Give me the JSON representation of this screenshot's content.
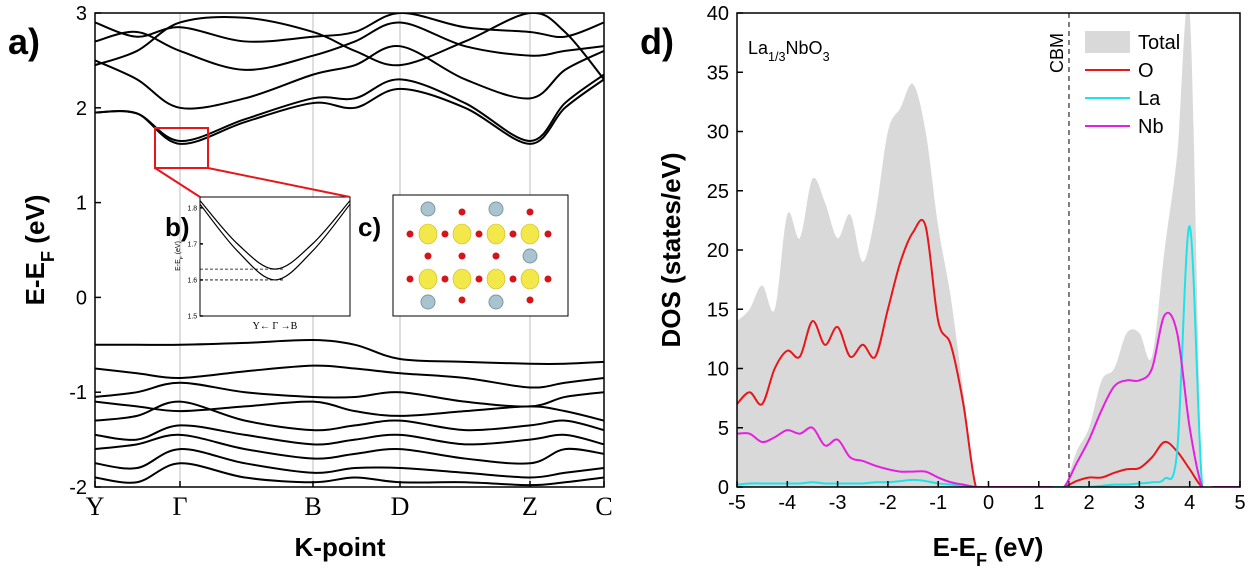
{
  "chart_data": [
    {
      "type": "line",
      "panel_label": "a)",
      "xlabel": "K-point",
      "ylabel_parts": [
        "E-E",
        "F",
        " (eV)"
      ],
      "color": "#000000",
      "x": [
        0,
        42,
        85,
        150,
        218,
        260,
        305,
        370,
        435,
        470,
        509
      ],
      "series": [
        {
          "values": [
            1.95,
            1.94,
            1.62,
            1.85,
            2.05,
            2.0,
            2.2,
            2.0,
            1.62,
            2.0,
            2.3
          ]
        },
        {
          "values": [
            1.95,
            1.94,
            1.65,
            1.88,
            2.1,
            2.1,
            2.3,
            2.05,
            1.65,
            2.05,
            2.35
          ]
        },
        {
          "values": [
            2.5,
            2.3,
            2.0,
            2.1,
            2.35,
            2.45,
            2.65,
            2.3,
            2.1,
            2.4,
            2.6
          ]
        },
        {
          "values": [
            2.7,
            2.8,
            2.6,
            2.4,
            2.55,
            2.7,
            2.9,
            2.65,
            2.55,
            2.6,
            2.65
          ]
        },
        {
          "values": [
            2.9,
            2.75,
            2.85,
            2.7,
            2.75,
            2.8,
            3.0,
            2.85,
            2.8,
            2.75,
            2.9
          ]
        },
        {
          "values": [
            2.45,
            2.6,
            2.9,
            2.95,
            2.8,
            2.6,
            2.45,
            2.7,
            3.0,
            2.8,
            2.3
          ]
        },
        {
          "values": [
            -0.5,
            -0.5,
            -0.5,
            -0.48,
            -0.45,
            -0.5,
            -0.65,
            -0.68,
            -0.7,
            -0.7,
            -0.68
          ]
        },
        {
          "values": [
            -0.75,
            -0.8,
            -0.85,
            -0.78,
            -0.72,
            -0.75,
            -0.8,
            -0.85,
            -0.95,
            -0.9,
            -0.85
          ]
        },
        {
          "values": [
            -1.05,
            -1.0,
            -0.9,
            -1.0,
            -1.05,
            -1.05,
            -1.0,
            -1.1,
            -1.15,
            -1.05,
            -1.0
          ]
        },
        {
          "values": [
            -1.1,
            -1.15,
            -1.2,
            -1.15,
            -1.1,
            -1.2,
            -1.25,
            -1.2,
            -1.15,
            -1.2,
            -1.3
          ]
        },
        {
          "values": [
            -1.3,
            -1.25,
            -1.1,
            -1.3,
            -1.4,
            -1.35,
            -1.3,
            -1.4,
            -1.35,
            -1.3,
            -1.4
          ]
        },
        {
          "values": [
            -1.45,
            -1.5,
            -1.35,
            -1.45,
            -1.55,
            -1.5,
            -1.45,
            -1.55,
            -1.5,
            -1.45,
            -1.55
          ]
        },
        {
          "values": [
            -1.6,
            -1.55,
            -1.45,
            -1.6,
            -1.7,
            -1.65,
            -1.6,
            -1.7,
            -1.75,
            -1.6,
            -1.65
          ]
        },
        {
          "values": [
            -1.75,
            -1.8,
            -1.6,
            -1.75,
            -1.85,
            -1.8,
            -1.8,
            -1.85,
            -1.9,
            -1.85,
            -1.8
          ]
        },
        {
          "values": [
            -1.9,
            -1.95,
            -1.75,
            -1.9,
            -1.95,
            -1.9,
            -1.95,
            -1.95,
            -1.98,
            -1.95,
            -1.9
          ]
        }
      ],
      "xlim": [
        0,
        509
      ],
      "ylim": [
        -2,
        3
      ],
      "xticks": [
        {
          "value": 0,
          "label": "Y"
        },
        {
          "value": 85,
          "label": "Γ"
        },
        {
          "value": 218,
          "label": "B"
        },
        {
          "value": 305,
          "label": "D"
        },
        {
          "value": 435,
          "label": "Z"
        },
        {
          "value": 509,
          "label": "C"
        }
      ],
      "yticks": [
        -2,
        -1,
        0,
        1,
        2,
        3
      ],
      "xgrid": true
    },
    {
      "type": "line",
      "panel_label": "b)",
      "xlabel": "Y← Γ →B",
      "ylabel_parts": [
        "E-E",
        "F",
        " (eV)"
      ],
      "color": "#000000",
      "x": [
        0,
        0.25,
        0.5,
        0.75,
        1
      ],
      "series": [
        {
          "values": [
            1.81,
            1.68,
            1.6,
            1.68,
            1.81
          ]
        },
        {
          "values": [
            1.82,
            1.7,
            1.63,
            1.7,
            1.82
          ]
        }
      ],
      "xlim": [
        0,
        1
      ],
      "ylim": [
        1.5,
        1.83
      ],
      "yticks": [
        1.5,
        1.6,
        1.7,
        1.8
      ],
      "reference_lines": [
        1.6,
        1.63
      ]
    },
    {
      "type": "image",
      "panel_label": "c)"
    },
    {
      "type": "line",
      "panel_label": "d)",
      "xlabel_parts": [
        "E-E",
        "F",
        " (eV)"
      ],
      "ylabel": "DOS (states/eV)",
      "formula_parts": [
        "La",
        "1/3",
        "NbO",
        "3"
      ],
      "annotation": {
        "text": "CBM",
        "x": 1.6
      },
      "x": [
        -5,
        -4.75,
        -4.5,
        -4.25,
        -4,
        -3.75,
        -3.5,
        -3.25,
        -3,
        -2.75,
        -2.5,
        -2.25,
        -2,
        -1.75,
        -1.5,
        -1.25,
        -1,
        -0.75,
        -0.5,
        -0.25,
        0,
        0.25,
        0.5,
        0.75,
        1,
        1.25,
        1.5,
        1.75,
        2,
        2.25,
        2.5,
        2.75,
        3,
        3.25,
        3.5,
        3.75,
        4,
        4.25,
        4.5,
        4.75,
        5
      ],
      "series": [
        {
          "name": "Total",
          "color": "#d9d9d9",
          "fill": true,
          "values": [
            14,
            15,
            17,
            15,
            23,
            21,
            26,
            24,
            21,
            23,
            19,
            23,
            30,
            32,
            34,
            30,
            22,
            16,
            8,
            0,
            0,
            0,
            0,
            0,
            0,
            0,
            0,
            3,
            5,
            9,
            10,
            13,
            13,
            11,
            20,
            28,
            40,
            0,
            0,
            0,
            0
          ]
        },
        {
          "name": "O",
          "color": "#e8161b",
          "values": [
            7,
            8,
            7,
            10,
            11.5,
            11,
            14,
            12,
            13.5,
            11,
            12,
            11,
            15,
            19,
            21.5,
            22,
            14,
            12,
            7,
            0,
            0,
            0,
            0,
            0,
            0,
            0,
            0,
            0.5,
            0.8,
            0.8,
            1.2,
            1.5,
            1.6,
            2.5,
            3.8,
            3,
            1.5,
            0,
            0,
            0,
            0
          ]
        },
        {
          "name": "La",
          "color": "#1de3e8",
          "values": [
            0.2,
            0.3,
            0.3,
            0.3,
            0.3,
            0.3,
            0.4,
            0.3,
            0.3,
            0.3,
            0.3,
            0.4,
            0.4,
            0.5,
            0.6,
            0.5,
            0.3,
            0.2,
            0.1,
            0,
            0,
            0,
            0,
            0,
            0,
            0,
            0,
            0,
            0,
            0.1,
            0.2,
            0.2,
            0.3,
            0.4,
            0.7,
            3,
            22,
            0,
            0,
            0,
            0
          ]
        },
        {
          "name": "Nb",
          "color": "#e51fe0",
          "values": [
            4.5,
            4.5,
            3.8,
            4.2,
            4.8,
            4.5,
            5,
            3.5,
            4,
            2.5,
            2.2,
            1.8,
            1.5,
            1.3,
            1.3,
            1.3,
            0.8,
            0.4,
            0.2,
            0,
            0,
            0,
            0,
            0,
            0,
            0,
            0,
            2,
            4,
            6.5,
            8.5,
            9,
            9,
            10,
            14.5,
            13,
            5,
            0,
            0,
            0,
            0
          ]
        }
      ],
      "xlim": [
        -5,
        5
      ],
      "ylim": [
        0,
        40
      ],
      "xticks": [
        -5,
        -4,
        -3,
        -2,
        -1,
        0,
        1,
        2,
        3,
        4,
        5
      ],
      "yticks": [
        0,
        5,
        10,
        15,
        20,
        25,
        30,
        35,
        40
      ]
    }
  ]
}
